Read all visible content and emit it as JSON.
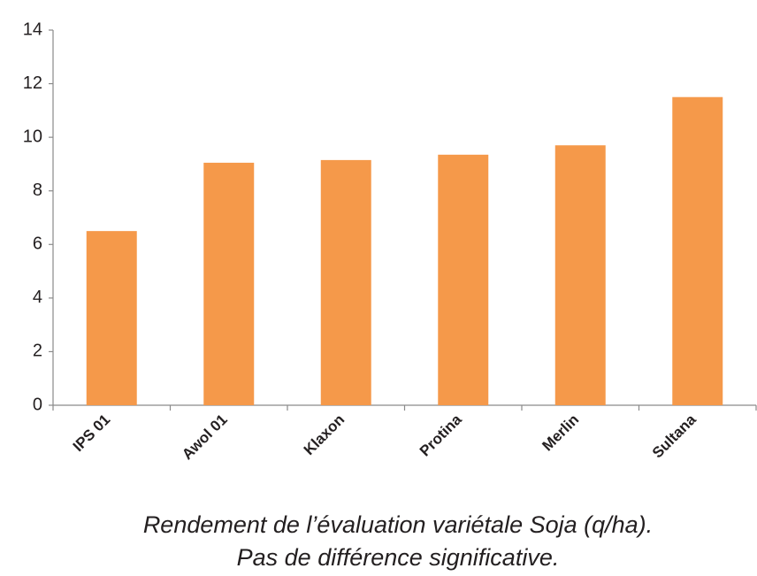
{
  "chart_data": {
    "type": "bar",
    "categories": [
      "IPS 01",
      "Awol 01",
      "Klaxon",
      "Protina",
      "Merlin",
      "Sultana"
    ],
    "values": [
      6.5,
      9.05,
      9.15,
      9.35,
      9.7,
      11.5
    ],
    "color": "#f5994a",
    "ylim": [
      0,
      14
    ],
    "yticks": [
      0,
      2,
      4,
      6,
      8,
      10,
      12,
      14
    ],
    "grid": false,
    "caption": [
      "Rendement de l’évaluation variétale Soja (q/ha).",
      "Pas de différence significative."
    ]
  }
}
